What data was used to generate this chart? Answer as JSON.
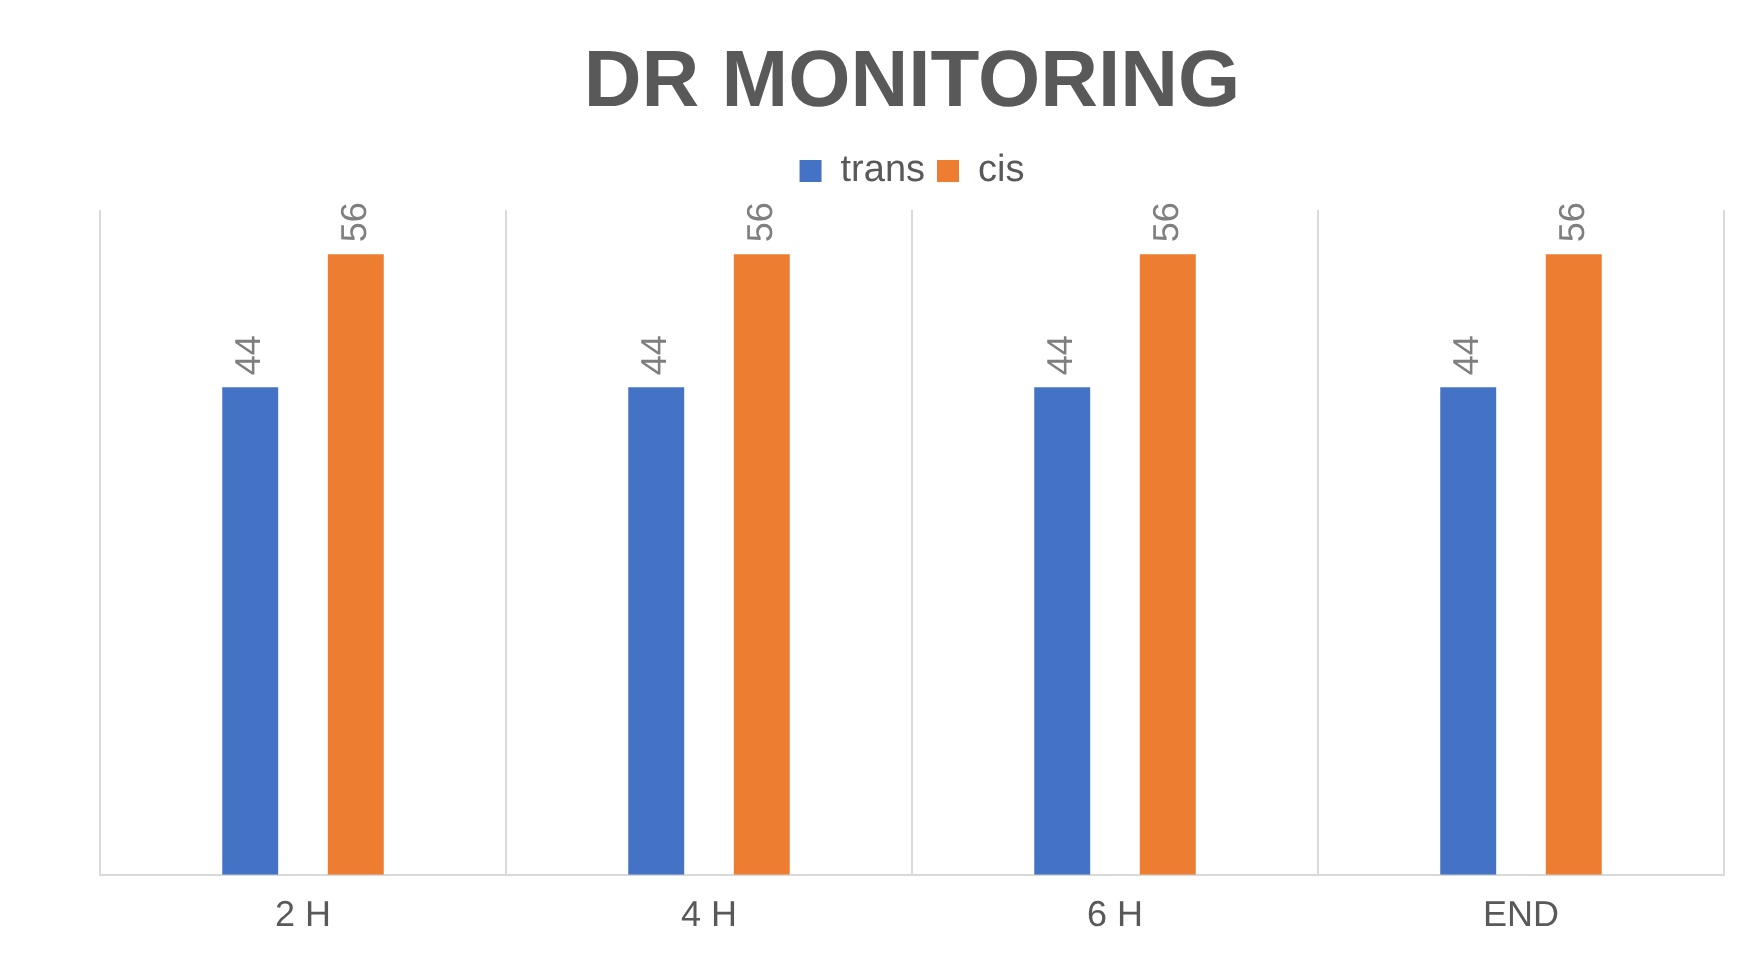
{
  "chart_data": {
    "type": "bar",
    "title": "DR MONITORING",
    "categories": [
      "2 H",
      "4 H",
      "6 H",
      "END"
    ],
    "series": [
      {
        "name": "trans",
        "color": "#4472c4",
        "values": [
          44,
          44,
          44,
          44
        ]
      },
      {
        "name": "cis",
        "color": "#ed7d31",
        "values": [
          56,
          56,
          56,
          56
        ]
      }
    ],
    "data_labels": true,
    "grid": "x",
    "legend": "top"
  }
}
